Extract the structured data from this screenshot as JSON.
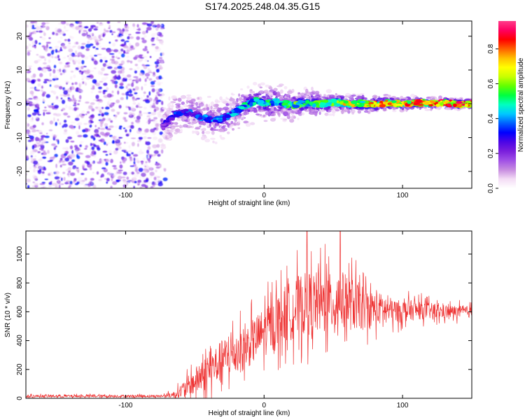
{
  "title": "S174.2025.248.04.35.G15",
  "chart_data": [
    {
      "type": "heatmap",
      "title": "S174.2025.248.04.35.G15",
      "xlabel": "Height of straight line (km)",
      "ylabel": "Frequency (Hz)",
      "xlim": [
        -172,
        150
      ],
      "ylim": [
        -25,
        24.5
      ],
      "xticks": [
        -100,
        0,
        100
      ],
      "yticks": [
        -20,
        -10,
        0,
        10,
        20
      ],
      "colorbar": {
        "label": "Normalized spectral amplitude",
        "range": [
          0,
          0.96
        ],
        "ticks": [
          "0.0",
          "0.2",
          "0.4",
          "0.6",
          "0.8"
        ],
        "colors": [
          "#ffffff",
          "#f3dcf5",
          "#c78ce0",
          "#a050e6",
          "#7a1fdc",
          "#4c05e6",
          "#0000ff",
          "#0060ff",
          "#00c8ff",
          "#00ffc0",
          "#00ff40",
          "#60ff00",
          "#c8ff00",
          "#ffff00",
          "#ffc000",
          "#ff6000",
          "#ff0000",
          "#ff0060",
          "#ff3c8a"
        ]
      },
      "noise_region_km": [
        -172,
        -73
      ],
      "signal_track": {
        "x": [
          -73,
          -65,
          -55,
          -45,
          -35,
          -25,
          -15,
          -5,
          0,
          10,
          20,
          30,
          40,
          50,
          60,
          70,
          80,
          90,
          100,
          110,
          120,
          130,
          140,
          150
        ],
        "freq_hz": [
          -7,
          -3,
          -2.5,
          -4,
          -5,
          -3.5,
          -1,
          1,
          0,
          0.5,
          -0.5,
          0.3,
          -0.2,
          0.4,
          0,
          0.2,
          -0.1,
          0.3,
          0,
          0.3,
          0.1,
          0.3,
          0,
          0.1
        ],
        "amplitude": [
          0.3,
          0.35,
          0.38,
          0.4,
          0.42,
          0.45,
          0.5,
          0.55,
          0.55,
          0.58,
          0.6,
          0.6,
          0.62,
          0.68,
          0.75,
          0.78,
          0.8,
          0.82,
          0.82,
          0.84,
          0.85,
          0.88,
          0.9,
          0.92
        ]
      }
    },
    {
      "type": "line",
      "xlabel": "Height of straight line (km)",
      "ylabel": "SNR (10 * v/v)",
      "xlim": [
        -172,
        150
      ],
      "ylim": [
        0,
        1160
      ],
      "xticks": [
        -100,
        0,
        100
      ],
      "yticks": [
        0,
        200,
        400,
        600,
        800,
        1000
      ],
      "series": [
        {
          "name": "SNR",
          "color": "#ee3333",
          "x_envelope": [
            -172,
            -100,
            -75,
            -65,
            -55,
            -45,
            -35,
            -25,
            -15,
            -5,
            5,
            15,
            25,
            35,
            45,
            55,
            65,
            75,
            85,
            95,
            105,
            115,
            125,
            135,
            150
          ],
          "mean": [
            15,
            15,
            15,
            25,
            80,
            150,
            230,
            300,
            340,
            420,
            500,
            580,
            640,
            660,
            650,
            680,
            650,
            620,
            620,
            600,
            610,
            610,
            600,
            600,
            600
          ],
          "spread": [
            10,
            10,
            10,
            25,
            80,
            130,
            150,
            170,
            170,
            180,
            200,
            220,
            240,
            250,
            230,
            230,
            200,
            150,
            120,
            90,
            80,
            70,
            60,
            50,
            45
          ],
          "peaks": [
            {
              "x": 31,
              "y": 1160
            },
            {
              "x": 55,
              "y": 1160
            },
            {
              "x": 44,
              "y": 1070
            }
          ]
        }
      ]
    }
  ]
}
